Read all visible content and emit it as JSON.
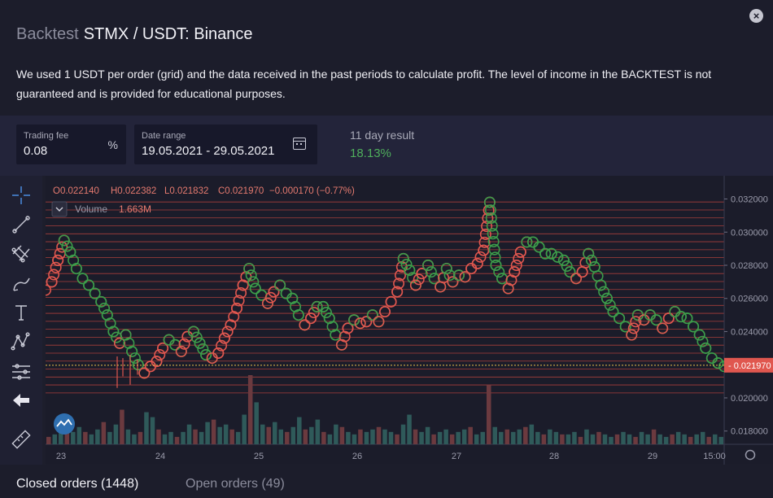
{
  "header": {
    "prefix": "Backtest",
    "title": "STMX / USDT: Binance",
    "close_label": "×"
  },
  "description": "We used 1 USDT per order (grid) and the data received in the past periods to calculate profit. The level of income in the BACKTEST is not guaranteed and is provided for educational purposes.",
  "params": {
    "trading_fee": {
      "label": "Trading fee",
      "value": "0.08",
      "suffix": "%"
    },
    "date_range": {
      "label": "Date range",
      "value": "19.05.2021 - 29.05.2021"
    },
    "result": {
      "label": "11 day result",
      "value": "18.13%"
    }
  },
  "toolbar": {
    "tools": [
      "crosshair-icon",
      "trend-line-icon",
      "fib-icon",
      "brush-icon",
      "text-icon",
      "pattern-icon",
      "measure-settings-icon",
      "back-arrow-icon",
      "ruler-icon"
    ]
  },
  "chart_legend": {
    "O": "O0.022140",
    "H": "H0.022382",
    "L": "L0.021832",
    "C": "C0.021970",
    "change": "−0.000170 (−0.77%)",
    "volume_label": "Volume",
    "volume_value": "1.663M"
  },
  "chart_data": {
    "type": "line",
    "title": "",
    "x_ticks": [
      "23",
      "24",
      "25",
      "26",
      "27",
      "28",
      "29",
      "15:00"
    ],
    "y_ticks": [
      "0.032000",
      "0.030000",
      "0.028000",
      "0.026000",
      "0.024000",
      "0.022000",
      "0.020000",
      "0.018000"
    ],
    "ylim": [
      0.0172,
      0.0334
    ],
    "last_price": "0.021970",
    "colors": {
      "buy": "#3d9c4a",
      "sell": "#e0574f",
      "grid_line": "#c0443f",
      "last_price": "#e0574f"
    },
    "price_series": [
      0.0265,
      0.027,
      0.0283,
      0.0295,
      0.0288,
      0.0278,
      0.0272,
      0.0268,
      0.0263,
      0.0258,
      0.025,
      0.024,
      0.0233,
      0.0238,
      0.0228,
      0.022,
      0.0215,
      0.0219,
      0.0222,
      0.023,
      0.0235,
      0.0232,
      0.0228,
      0.0237,
      0.024,
      0.0233,
      0.0226,
      0.0224,
      0.0227,
      0.0236,
      0.0244,
      0.0254,
      0.0268,
      0.0278,
      0.0266,
      0.0262,
      0.0257,
      0.0264,
      0.0268,
      0.0263,
      0.026,
      0.025,
      0.0244,
      0.0248,
      0.0255,
      0.0255,
      0.0248,
      0.0238,
      0.0232,
      0.0242,
      0.0247,
      0.0245,
      0.0246,
      0.025,
      0.0246,
      0.0252,
      0.0258,
      0.0264,
      0.0284,
      0.0277,
      0.0268,
      0.0275,
      0.028,
      0.0272,
      0.0267,
      0.0278,
      0.027,
      0.0274,
      0.0273,
      0.0278,
      0.0281,
      0.0289,
      0.0318,
      0.028,
      0.0272,
      0.0266,
      0.0276,
      0.0288,
      0.0294,
      0.0294,
      0.0291,
      0.0287,
      0.0287,
      0.0285,
      0.0283,
      0.0276,
      0.0272,
      0.0276,
      0.0287,
      0.0279,
      0.0268,
      0.026,
      0.0252,
      0.0248,
      0.0243,
      0.0238,
      0.025,
      0.0247,
      0.025,
      0.0247,
      0.0242,
      0.0248,
      0.0252,
      0.0249,
      0.0248,
      0.0243,
      0.0238,
      0.023,
      0.0224,
      0.0221,
      0.0219
    ],
    "volume_series": [
      3,
      4,
      6,
      8,
      5,
      7,
      5,
      4,
      6,
      9,
      5,
      8,
      14,
      6,
      4,
      5,
      13,
      11,
      6,
      4,
      5,
      3,
      5,
      8,
      6,
      5,
      9,
      10,
      7,
      8,
      6,
      5,
      12,
      28,
      17,
      8,
      7,
      9,
      6,
      5,
      7,
      11,
      6,
      7,
      10,
      5,
      4,
      8,
      7,
      5,
      4,
      6,
      5,
      6,
      7,
      6,
      5,
      4,
      8,
      12,
      6,
      5,
      7,
      4,
      5,
      6,
      4,
      5,
      6,
      7,
      4,
      5,
      24,
      7,
      5,
      6,
      5,
      6,
      7,
      8,
      5,
      4,
      6,
      5,
      4,
      4,
      5,
      3,
      6,
      4,
      5,
      4,
      3,
      4,
      5,
      4,
      3,
      5,
      4,
      6,
      4,
      3,
      4,
      5,
      4,
      3,
      4,
      5,
      3,
      4,
      3
    ]
  },
  "tabs": {
    "closed": "Closed orders (1448)",
    "open": "Open orders (49)"
  }
}
